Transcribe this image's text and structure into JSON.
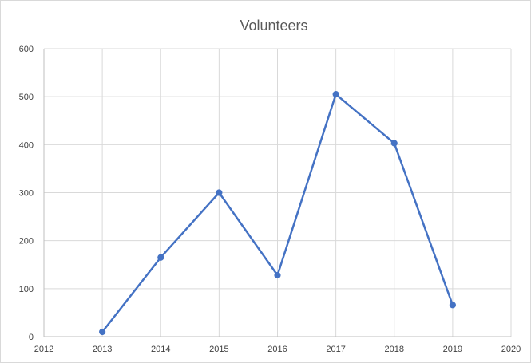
{
  "chart_data": {
    "type": "scatter",
    "mode": "lines+markers",
    "title": "Volunteers",
    "xlabel": "",
    "ylabel": "",
    "xlim": [
      2012,
      2020
    ],
    "ylim": [
      0,
      600
    ],
    "x_ticks": [
      "2012",
      "2013",
      "2014",
      "2015",
      "2016",
      "2017",
      "2018",
      "2019",
      "2020"
    ],
    "y_ticks": [
      "0",
      "100",
      "200",
      "300",
      "400",
      "500",
      "600"
    ],
    "grid": true,
    "legend": "none",
    "series": [
      {
        "color": "#4472c4",
        "x": [
          2013,
          2014,
          2015,
          2016,
          2017,
          2018,
          2019
        ],
        "y": [
          10,
          165,
          300,
          128,
          505,
          403,
          66
        ]
      }
    ]
  }
}
